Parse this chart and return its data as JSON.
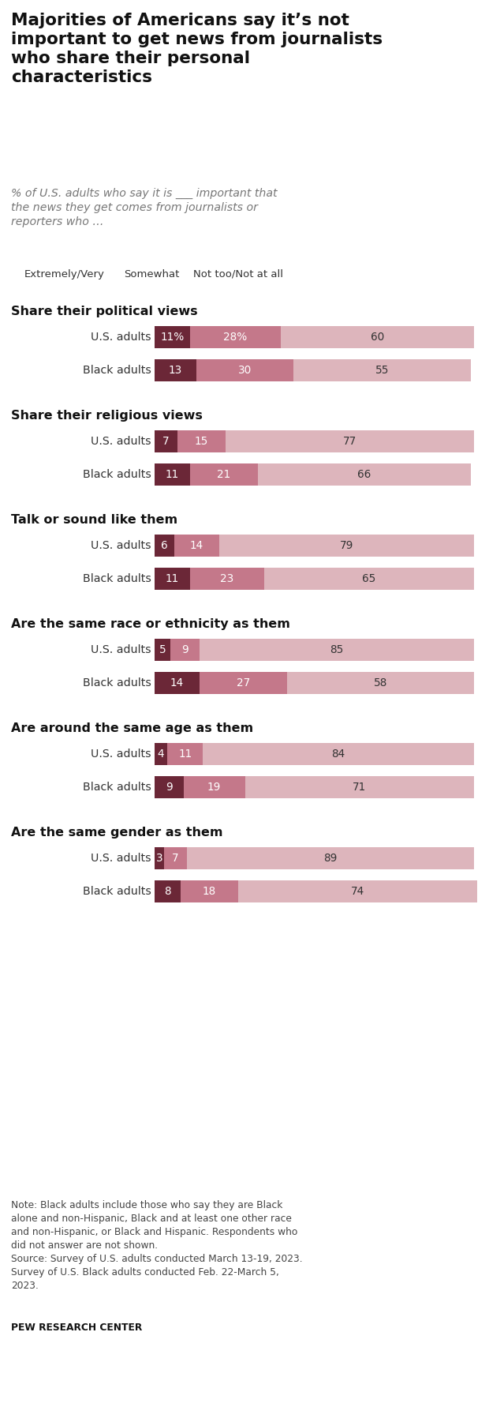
{
  "title": "Majorities of Americans say it’s not\nimportant to get news from journalists\nwho share their personal\ncharacteristics",
  "subtitle": "% of U.S. adults who say it is ___ important that\nthe news they get comes from journalists or\nreporters who …",
  "legend_items": [
    {
      "color": "#6b2737",
      "label": "Extremely/Very"
    },
    {
      "color": "#c4788a",
      "label": "Somewhat"
    },
    {
      "color": "#ddb5bc",
      "label": "Not too/Not at all"
    }
  ],
  "sections": [
    {
      "title": "Share their political views",
      "rows": [
        {
          "label": "U.S. adults",
          "values": [
            11,
            28,
            60
          ],
          "pct_first": true
        },
        {
          "label": "Black adults",
          "values": [
            13,
            30,
            55
          ],
          "pct_first": false
        }
      ]
    },
    {
      "title": "Share their religious views",
      "rows": [
        {
          "label": "U.S. adults",
          "values": [
            7,
            15,
            77
          ],
          "pct_first": false
        },
        {
          "label": "Black adults",
          "values": [
            11,
            21,
            66
          ],
          "pct_first": false
        }
      ]
    },
    {
      "title": "Talk or sound like them",
      "rows": [
        {
          "label": "U.S. adults",
          "values": [
            6,
            14,
            79
          ],
          "pct_first": false
        },
        {
          "label": "Black adults",
          "values": [
            11,
            23,
            65
          ],
          "pct_first": false
        }
      ]
    },
    {
      "title": "Are the same race or ethnicity as them",
      "rows": [
        {
          "label": "U.S. adults",
          "values": [
            5,
            9,
            85
          ],
          "pct_first": false
        },
        {
          "label": "Black adults",
          "values": [
            14,
            27,
            58
          ],
          "pct_first": false
        }
      ]
    },
    {
      "title": "Are around the same age as them",
      "rows": [
        {
          "label": "U.S. adults",
          "values": [
            4,
            11,
            84
          ],
          "pct_first": false
        },
        {
          "label": "Black adults",
          "values": [
            9,
            19,
            71
          ],
          "pct_first": false
        }
      ]
    },
    {
      "title": "Are the same gender as them",
      "rows": [
        {
          "label": "U.S. adults",
          "values": [
            3,
            7,
            89
          ],
          "pct_first": false
        },
        {
          "label": "Black adults",
          "values": [
            8,
            18,
            74
          ],
          "pct_first": false
        }
      ]
    }
  ],
  "note_text": "Note: Black adults include those who say they are Black\nalone and non-Hispanic, Black and at least one other race\nand non-Hispanic, or Black and Hispanic. Respondents who\ndid not answer are not shown.\nSource: Survey of U.S. adults conducted March 13-19, 2023.\nSurvey of U.S. Black adults conducted Feb. 22-March 5,\n2023.",
  "credit": "PEW RESEARCH CENTER",
  "bg_color": "#ffffff",
  "colors": [
    "#6b2737",
    "#c4788a",
    "#ddb5bc"
  ]
}
